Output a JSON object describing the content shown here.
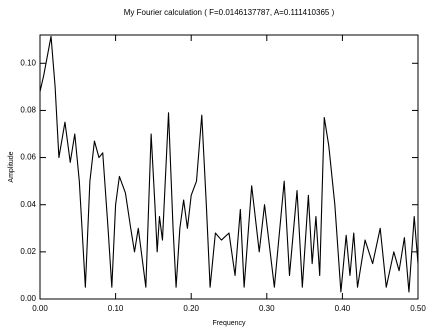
{
  "chart_data": {
    "type": "line",
    "title": "My Fourier calculation ( F=0.0146137787, A=0.111410365 )",
    "x_label": "Frequency",
    "y_label": "Amplitude",
    "xlim": [
      0,
      0.5
    ],
    "ylim": [
      0,
      0.112
    ],
    "xticks": [
      {
        "value": 0,
        "label": "0.00"
      },
      {
        "value": 0.1,
        "label": "0.10"
      },
      {
        "value": 0.2,
        "label": "0.20"
      },
      {
        "value": 0.3,
        "label": "0.30"
      },
      {
        "value": 0.4,
        "label": "0.40"
      },
      {
        "value": 0.5,
        "label": "0.50"
      }
    ],
    "yticks": [
      {
        "value": 0,
        "label": "0.00"
      },
      0.02,
      0.04,
      0.06,
      0.08,
      {
        "value": 0.1,
        "label": "0.10"
      }
    ],
    "grid": false,
    "x": [
      0,
      0.005,
      0.0146,
      0.02,
      0.025,
      0.033,
      0.04,
      0.046,
      0.052,
      0.06,
      0.066,
      0.072,
      0.078,
      0.083,
      0.09,
      0.095,
      0.1,
      0.105,
      0.113,
      0.12,
      0.125,
      0.13,
      0.14,
      0.147,
      0.152,
      0.155,
      0.158,
      0.162,
      0.17,
      0.176,
      0.18,
      0.185,
      0.19,
      0.195,
      0.2,
      0.207,
      0.214,
      0.22,
      0.225,
      0.232,
      0.24,
      0.25,
      0.258,
      0.265,
      0.27,
      0.28,
      0.29,
      0.297,
      0.31,
      0.323,
      0.33,
      0.34,
      0.347,
      0.355,
      0.36,
      0.365,
      0.37,
      0.376,
      0.382,
      0.39,
      0.398,
      0.405,
      0.41,
      0.415,
      0.42,
      0.43,
      0.44,
      0.45,
      0.458,
      0.468,
      0.475,
      0.482,
      0.488,
      0.495,
      0.5
    ],
    "series": [
      {
        "color": "#000000",
        "values": [
          0.088,
          0.095,
          0.1114,
          0.09,
          0.06,
          0.075,
          0.058,
          0.07,
          0.05,
          0.005,
          0.05,
          0.067,
          0.06,
          0.062,
          0.03,
          0.005,
          0.04,
          0.052,
          0.045,
          0.03,
          0.02,
          0.03,
          0.005,
          0.07,
          0.04,
          0.02,
          0.035,
          0.025,
          0.079,
          0.03,
          0.005,
          0.03,
          0.042,
          0.03,
          0.044,
          0.05,
          0.078,
          0.04,
          0.005,
          0.028,
          0.025,
          0.028,
          0.01,
          0.038,
          0.005,
          0.048,
          0.02,
          0.04,
          0.005,
          0.05,
          0.01,
          0.046,
          0.005,
          0.044,
          0.015,
          0.035,
          0.01,
          0.077,
          0.065,
          0.04,
          0.003,
          0.027,
          0.01,
          0.028,
          0.005,
          0.025,
          0.015,
          0.03,
          0.005,
          0.02,
          0.012,
          0.026,
          0.003,
          0.035,
          0.015
        ]
      }
    ]
  }
}
